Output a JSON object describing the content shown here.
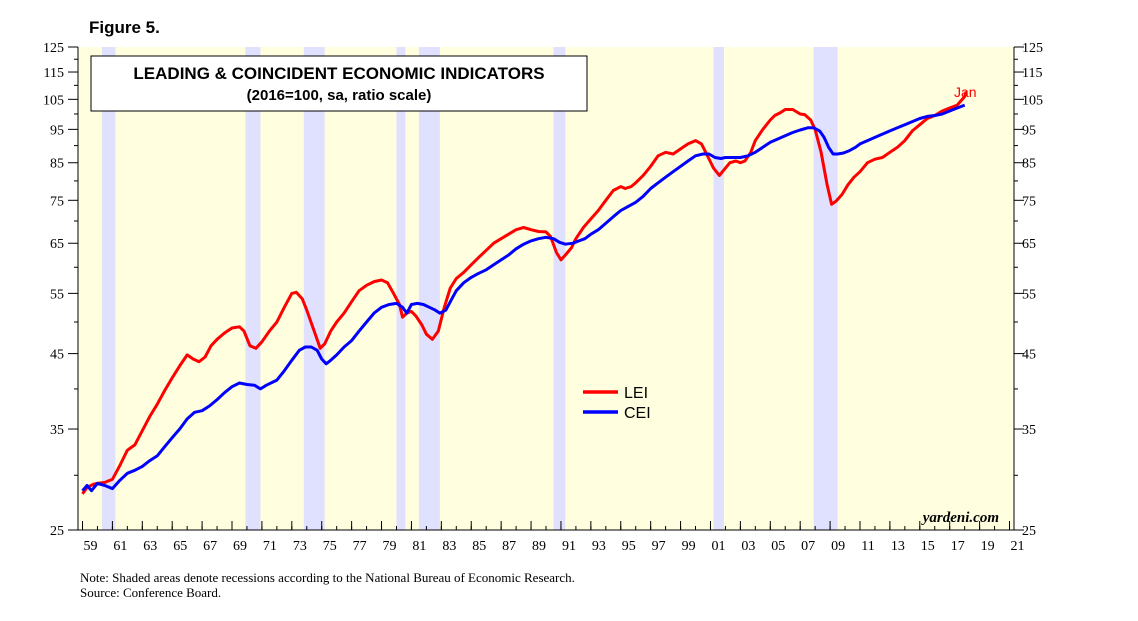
{
  "figure_label": "Figure 5.",
  "notes": {
    "note": "Note: Shaded areas denote recessions according to the National Bureau of Economic Research.",
    "source": "Source: Conference Board."
  },
  "colors": {
    "background": "#ffffe0",
    "recession": "#e0e0ff",
    "lei": "#ff0000",
    "cei": "#0000ff"
  },
  "chart_data": {
    "type": "line",
    "title": "LEADING & COINCIDENT ECONOMIC INDICATORS",
    "subtitle": "(2016=100, sa, ratio scale)",
    "watermark": "yardeni.com",
    "end_label": "Jan",
    "y_scale": "log",
    "ylim": [
      25,
      125
    ],
    "xlim": [
      1958.7,
      2021.3
    ],
    "y_ticks": [
      25,
      35,
      45,
      55,
      65,
      75,
      85,
      95,
      105,
      115,
      125
    ],
    "x_tick_labels": [
      "59",
      "61",
      "63",
      "65",
      "67",
      "69",
      "71",
      "73",
      "75",
      "77",
      "79",
      "81",
      "83",
      "85",
      "87",
      "89",
      "91",
      "93",
      "95",
      "97",
      "99",
      "01",
      "03",
      "05",
      "07",
      "09",
      "11",
      "13",
      "15",
      "17",
      "19",
      "21"
    ],
    "x_tick_years": [
      1959,
      1961,
      1963,
      1965,
      1967,
      1969,
      1971,
      1973,
      1975,
      1977,
      1979,
      1981,
      1983,
      1985,
      1987,
      1989,
      1991,
      1993,
      1995,
      1997,
      1999,
      2001,
      2003,
      2005,
      2007,
      2009,
      2011,
      2013,
      2015,
      2017,
      2019,
      2021
    ],
    "grid": false,
    "legend_position": "center",
    "recessions": [
      [
        1960.3,
        1961.2
      ],
      [
        1969.9,
        1970.9
      ],
      [
        1973.8,
        1975.2
      ],
      [
        1980.0,
        1980.6
      ],
      [
        1981.5,
        1982.9
      ],
      [
        1990.5,
        1991.3
      ],
      [
        2001.2,
        2001.9
      ],
      [
        2007.9,
        2009.5
      ]
    ],
    "series": [
      {
        "name": "LEI",
        "color": "#ff0000",
        "x": [
          1959.0,
          1959.3,
          1959.7,
          1960.0,
          1960.5,
          1961.0,
          1961.5,
          1962.0,
          1962.5,
          1963.0,
          1963.5,
          1964.0,
          1964.5,
          1965.0,
          1965.5,
          1966.0,
          1966.4,
          1966.8,
          1967.2,
          1967.6,
          1968.0,
          1968.5,
          1969.0,
          1969.5,
          1969.8,
          1970.2,
          1970.6,
          1971.0,
          1971.5,
          1972.0,
          1972.5,
          1973.0,
          1973.3,
          1973.7,
          1974.0,
          1974.5,
          1974.9,
          1975.2,
          1975.6,
          1976.0,
          1976.5,
          1977.0,
          1977.5,
          1978.0,
          1978.5,
          1979.0,
          1979.4,
          1979.8,
          1980.2,
          1980.4,
          1980.7,
          1981.0,
          1981.3,
          1981.7,
          1982.0,
          1982.4,
          1982.8,
          1983.2,
          1983.6,
          1984.0,
          1984.5,
          1985.0,
          1985.5,
          1986.0,
          1986.5,
          1987.0,
          1987.5,
          1988.0,
          1988.5,
          1989.0,
          1989.5,
          1990.0,
          1990.3,
          1990.7,
          1991.0,
          1991.3,
          1991.7,
          1992.0,
          1992.5,
          1993.0,
          1993.5,
          1994.0,
          1994.5,
          1995.0,
          1995.3,
          1995.7,
          1996.0,
          1996.5,
          1997.0,
          1997.5,
          1998.0,
          1998.5,
          1999.0,
          1999.5,
          2000.0,
          2000.4,
          2000.8,
          2001.2,
          2001.6,
          2001.9,
          2002.3,
          2002.7,
          2003.0,
          2003.3,
          2003.7,
          2004.0,
          2004.5,
          2005.0,
          2005.3,
          2005.7,
          2006.0,
          2006.5,
          2007.0,
          2007.3,
          2007.7,
          2008.0,
          2008.4,
          2008.8,
          2009.1,
          2009.4,
          2009.8,
          2010.2,
          2010.6,
          2011.0,
          2011.5,
          2012.0,
          2012.5,
          2013.0,
          2013.5,
          2014.0,
          2014.5,
          2015.0,
          2015.5,
          2016.0,
          2016.5,
          2017.0,
          2017.5,
          2018.0,
          2018.1
        ],
        "values": [
          28.2,
          28.8,
          29.1,
          29.2,
          29.3,
          29.6,
          31.0,
          32.6,
          33.2,
          34.8,
          36.5,
          38.0,
          39.8,
          41.5,
          43.2,
          44.8,
          44.2,
          43.8,
          44.5,
          46.2,
          47.2,
          48.2,
          49.0,
          49.2,
          48.5,
          46.2,
          45.8,
          46.8,
          48.5,
          50.0,
          52.5,
          55.0,
          55.2,
          54.0,
          52.0,
          48.5,
          45.8,
          46.5,
          48.5,
          50.0,
          51.5,
          53.5,
          55.5,
          56.5,
          57.2,
          57.5,
          57.0,
          55.0,
          53.0,
          50.8,
          51.5,
          51.8,
          51.0,
          49.5,
          48.0,
          47.2,
          48.5,
          52.5,
          56.0,
          57.8,
          59.0,
          60.5,
          62.0,
          63.5,
          65.0,
          66.0,
          67.0,
          68.0,
          68.5,
          68.0,
          67.6,
          67.5,
          66.5,
          63.0,
          61.5,
          62.5,
          64.0,
          66.0,
          68.5,
          70.5,
          72.5,
          75.0,
          77.5,
          78.5,
          78.0,
          78.5,
          79.5,
          81.5,
          84.0,
          87.0,
          88.0,
          87.5,
          89.0,
          90.5,
          91.5,
          90.5,
          87.0,
          83.5,
          81.5,
          83.0,
          85.0,
          85.5,
          85.0,
          85.5,
          88.0,
          91.5,
          95.0,
          98.0,
          99.5,
          100.5,
          101.5,
          101.5,
          100.0,
          99.8,
          98.0,
          95.0,
          88.0,
          79.0,
          74.0,
          74.8,
          76.5,
          79.0,
          81.0,
          82.5,
          85.0,
          86.0,
          86.5,
          88.0,
          89.5,
          91.5,
          94.5,
          96.5,
          98.5,
          99.5,
          101.0,
          102.0,
          103.0,
          106.0,
          107.8
        ]
      },
      {
        "name": "CEI",
        "color": "#0000ff",
        "x": [
          1959.0,
          1959.3,
          1959.6,
          1960.0,
          1960.5,
          1961.0,
          1961.5,
          1962.0,
          1962.5,
          1963.0,
          1963.5,
          1964.0,
          1964.5,
          1965.0,
          1965.5,
          1966.0,
          1966.5,
          1967.0,
          1967.5,
          1968.0,
          1968.5,
          1969.0,
          1969.5,
          1970.0,
          1970.5,
          1970.9,
          1971.3,
          1972.0,
          1972.5,
          1973.0,
          1973.5,
          1973.9,
          1974.3,
          1974.7,
          1975.0,
          1975.3,
          1975.6,
          1976.0,
          1976.5,
          1977.0,
          1977.5,
          1978.0,
          1978.5,
          1979.0,
          1979.5,
          1980.0,
          1980.4,
          1980.7,
          1981.0,
          1981.4,
          1981.8,
          1982.2,
          1982.6,
          1982.9,
          1983.3,
          1983.7,
          1984.0,
          1984.5,
          1985.0,
          1985.5,
          1986.0,
          1986.5,
          1987.0,
          1987.5,
          1988.0,
          1988.5,
          1989.0,
          1989.5,
          1990.0,
          1990.5,
          1990.9,
          1991.3,
          1991.8,
          1992.2,
          1992.6,
          1993.0,
          1993.5,
          1994.0,
          1994.5,
          1995.0,
          1995.5,
          1996.0,
          1996.5,
          1997.0,
          1997.5,
          1998.0,
          1998.5,
          1999.0,
          1999.5,
          2000.0,
          2000.5,
          2000.9,
          2001.3,
          2001.7,
          2002.0,
          2002.5,
          2003.0,
          2003.5,
          2004.0,
          2004.5,
          2005.0,
          2005.5,
          2006.0,
          2006.5,
          2007.0,
          2007.5,
          2007.9,
          2008.3,
          2008.6,
          2008.9,
          2009.2,
          2009.5,
          2009.9,
          2010.3,
          2010.7,
          2011.0,
          2011.5,
          2012.0,
          2012.5,
          2013.0,
          2013.5,
          2014.0,
          2014.5,
          2015.0,
          2015.5,
          2016.0,
          2016.5,
          2017.0,
          2017.5,
          2018.0
        ],
        "values": [
          28.5,
          29.0,
          28.5,
          29.2,
          29.0,
          28.7,
          29.5,
          30.2,
          30.5,
          30.9,
          31.5,
          32.0,
          33.0,
          34.0,
          35.0,
          36.2,
          37.0,
          37.2,
          37.8,
          38.6,
          39.5,
          40.3,
          40.8,
          40.6,
          40.5,
          40.0,
          40.5,
          41.2,
          42.5,
          44.0,
          45.5,
          46.0,
          46.0,
          45.5,
          44.2,
          43.5,
          44.0,
          44.8,
          46.0,
          47.0,
          48.5,
          50.0,
          51.5,
          52.5,
          53.0,
          53.2,
          52.5,
          51.5,
          53.0,
          53.2,
          53.0,
          52.5,
          52.0,
          51.5,
          52.0,
          54.0,
          55.5,
          57.0,
          58.0,
          58.8,
          59.5,
          60.5,
          61.5,
          62.5,
          63.8,
          64.8,
          65.5,
          66.0,
          66.3,
          66.0,
          65.2,
          64.8,
          65.0,
          65.5,
          66.0,
          67.0,
          68.0,
          69.5,
          71.0,
          72.5,
          73.5,
          74.5,
          76.0,
          78.0,
          79.5,
          81.0,
          82.5,
          84.0,
          85.5,
          87.0,
          87.5,
          87.5,
          86.5,
          86.2,
          86.5,
          86.5,
          86.5,
          87.0,
          88.0,
          89.5,
          91.0,
          92.0,
          93.0,
          94.0,
          94.8,
          95.5,
          95.5,
          94.5,
          92.5,
          89.5,
          87.5,
          87.5,
          87.8,
          88.5,
          89.5,
          90.5,
          91.5,
          92.5,
          93.5,
          94.5,
          95.5,
          96.5,
          97.5,
          98.5,
          99.2,
          99.5,
          100.0,
          101.0,
          102.0,
          103.0
        ]
      }
    ]
  }
}
